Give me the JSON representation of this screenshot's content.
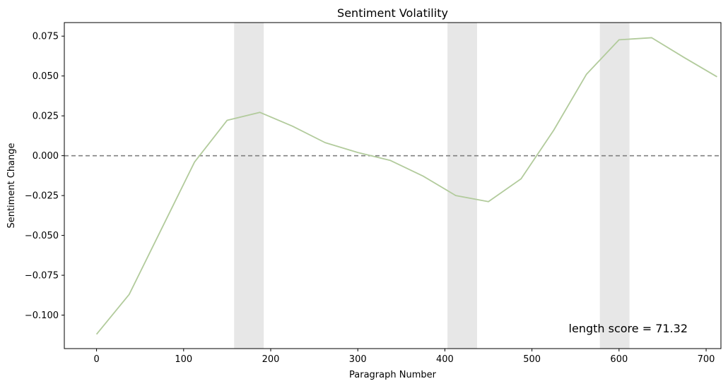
{
  "chart_data": {
    "type": "line",
    "title": "Sentiment Volatility",
    "xlabel": "Paragraph Number",
    "ylabel": "Sentiment Change",
    "xlim": [
      -37,
      717
    ],
    "ylim": [
      -0.121,
      0.0835
    ],
    "xticks": [
      0,
      100,
      200,
      300,
      400,
      500,
      600,
      700
    ],
    "yticks": [
      -0.1,
      -0.075,
      -0.05,
      -0.025,
      0.0,
      0.025,
      0.05,
      0.075
    ],
    "ytick_labels": [
      "−0.100",
      "−0.075",
      "−0.050",
      "−0.025",
      "0.000",
      "0.025",
      "0.050",
      "0.075"
    ],
    "grid": false,
    "series": [
      {
        "color": "#b2cb9c",
        "x": [
          0,
          37.5,
          75,
          112.5,
          150,
          187.5,
          225,
          262.5,
          300,
          337.5,
          375,
          412.5,
          450,
          487.5,
          525,
          562.5,
          600,
          637.5,
          675,
          712.5
        ],
        "y": [
          -0.112,
          -0.087,
          -0.0455,
          -0.004,
          0.0222,
          0.0272,
          0.0185,
          0.0082,
          0.002,
          -0.003,
          -0.0128,
          -0.025,
          -0.0288,
          -0.0145,
          0.016,
          0.051,
          0.0727,
          0.074,
          0.0615,
          0.0495
        ]
      }
    ],
    "reference_line": {
      "y": 0.0,
      "style": "dashed",
      "color": "#808080"
    },
    "shaded_spans": [
      {
        "x0": 158,
        "x1": 192,
        "color": "#e7e7e7"
      },
      {
        "x0": 403,
        "x1": 437,
        "color": "#e7e7e7"
      },
      {
        "x0": 578,
        "x1": 612,
        "color": "#e7e7e7"
      }
    ],
    "annotation": {
      "text": "length score = 71.32",
      "placement": "bottom-right"
    }
  }
}
